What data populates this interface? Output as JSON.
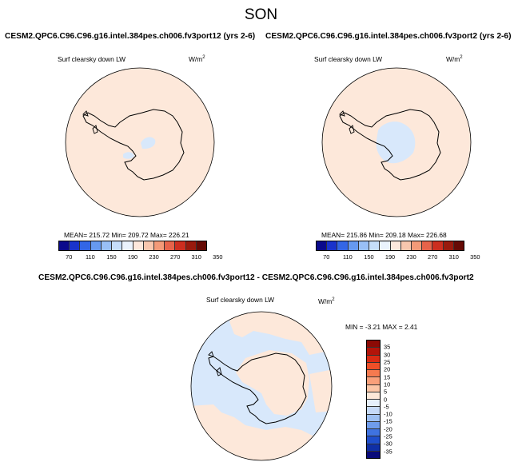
{
  "season": "SON",
  "panels": [
    {
      "title": "CESM2.QPC6.C96.C96.g16.intel.384pes.ch006.fv3port12 (yrs 2-6)",
      "variable": "Surf clearsky down LW",
      "units": "W/m",
      "units_sup": "2",
      "stats": "MEAN= 215.72  Min= 209.72  Max= 226.21"
    },
    {
      "title": "CESM2.QPC6.C96.C96.g16.intel.384pes.ch006.fv3port2 (yrs 2-6)",
      "variable": "Surf clearsky down LW",
      "units": "W/m",
      "units_sup": "2",
      "stats": "MEAN= 215.86  Min= 209.18  Max= 226.68"
    }
  ],
  "colorbar": {
    "colors": [
      "#0a0a8c",
      "#1a33cc",
      "#3366e6",
      "#6699f0",
      "#99bff5",
      "#c6defa",
      "#eaf3fd",
      "#fde8dc",
      "#f8c7ae",
      "#f39a78",
      "#e6634a",
      "#cc2e1f",
      "#991a0d",
      "#660a05"
    ],
    "tick_labels": [
      "70",
      "110",
      "150",
      "190",
      "230",
      "270",
      "310",
      "350"
    ]
  },
  "diff_panel": {
    "title": "CESM2.QPC6.C96.C96.g16.intel.384pes.ch006.fv3port12 - CESM2.QPC6.C96.C96.g16.intel.384pes.ch006.fv3port2",
    "variable": "Surf clearsky down LW",
    "units": "W/m",
    "units_sup": "2",
    "stats": "MIN =  -3.21 MAX =   2.41",
    "colors_top_to_bottom": [
      "#8c0a05",
      "#b3140a",
      "#d92b14",
      "#ee4f28",
      "#f57a4f",
      "#f9a07a",
      "#fcc6a6",
      "#fde8d8",
      "#e6f0fc",
      "#c6daf8",
      "#9ec0f2",
      "#6f9ceb",
      "#3f73e0",
      "#1f4fcc",
      "#0f2fa6",
      "#0a0a7a"
    ],
    "tick_labels_top_to_bottom": [
      "35",
      "30",
      "25",
      "20",
      "15",
      "10",
      "5",
      "0",
      "-5",
      "-10",
      "-15",
      "-20",
      "-25",
      "-30",
      "-35"
    ]
  },
  "map_colors": {
    "warm_fill": "#fde8da",
    "cool_fill": "#d8e8fb",
    "coast": "#000000"
  }
}
